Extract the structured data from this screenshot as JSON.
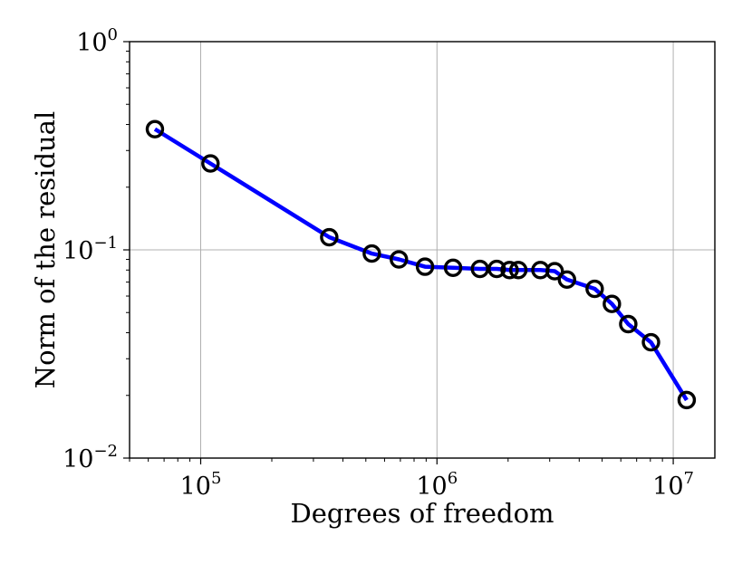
{
  "chart_data": {
    "type": "line",
    "title": "",
    "xlabel": "Degrees of freedom",
    "ylabel": "Norm of the residual",
    "xscale": "log",
    "yscale": "log",
    "xlim": [
      50000,
      15000000
    ],
    "ylim": [
      0.01,
      1
    ],
    "grid": true,
    "legend": "none",
    "x_ticks": [
      {
        "value": 100000,
        "base": "10",
        "exp": "5"
      },
      {
        "value": 1000000,
        "base": "10",
        "exp": "6"
      },
      {
        "value": 10000000,
        "base": "10",
        "exp": "7"
      }
    ],
    "y_ticks": [
      {
        "value": 1,
        "base": "10",
        "exp": "0"
      },
      {
        "value": 0.1,
        "base": "10",
        "exp": "−1"
      },
      {
        "value": 0.01,
        "base": "10",
        "exp": "−2"
      }
    ],
    "series": [
      {
        "line_color": "#0000ff",
        "marker": "circle",
        "marker_edge_color": "#000000",
        "marker_face": "none",
        "x": [
          64000,
          110000,
          350000,
          530000,
          690000,
          890000,
          1170000,
          1520000,
          1790000,
          2030000,
          2210000,
          2740000,
          3150000,
          3550000,
          4650000,
          5500000,
          6450000,
          8050000,
          11400000
        ],
        "y": [
          0.38,
          0.26,
          0.115,
          0.096,
          0.09,
          0.083,
          0.082,
          0.081,
          0.081,
          0.08,
          0.08,
          0.08,
          0.079,
          0.072,
          0.065,
          0.055,
          0.044,
          0.036,
          0.019
        ]
      }
    ]
  }
}
